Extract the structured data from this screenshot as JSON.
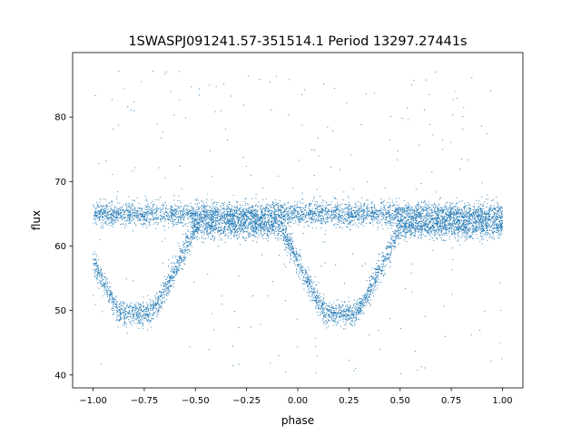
{
  "chart_data": {
    "type": "scatter",
    "title": "1SWASPJ091241.57-351514.1 Period 13297.27441s",
    "xlabel": "phase",
    "ylabel": "flux",
    "xlim": [
      -1.1,
      1.1
    ],
    "ylim": [
      38,
      90
    ],
    "xticks": [
      -1.0,
      -0.75,
      -0.5,
      -0.25,
      0.0,
      0.25,
      0.5,
      0.75,
      1.0
    ],
    "xtick_labels": [
      "−1.00",
      "−0.75",
      "−0.50",
      "−0.25",
      "0.00",
      "0.25",
      "0.50",
      "0.75",
      "1.00"
    ],
    "yticks": [
      40,
      50,
      60,
      70,
      80
    ],
    "ytick_labels": [
      "40",
      "50",
      "60",
      "70",
      "80"
    ],
    "grid": false,
    "marker_color": "#1f77b4",
    "series": [
      {
        "phase_range": [
          -1.0,
          1.0
        ],
        "point_count": 9000,
        "upper_branch_flux": 65,
        "lower_branch_flux": 63,
        "eclipse_minima": [
          {
            "phase": -0.79,
            "flux": 49.5
          },
          {
            "phase": 0.21,
            "flux": 49.5
          }
        ],
        "eclipse_ingress_egress_phases": [
          [
            -1.0,
            -0.5
          ],
          [
            0.0,
            0.5
          ]
        ],
        "scatter_flux_range": [
          40,
          88
        ]
      }
    ]
  }
}
